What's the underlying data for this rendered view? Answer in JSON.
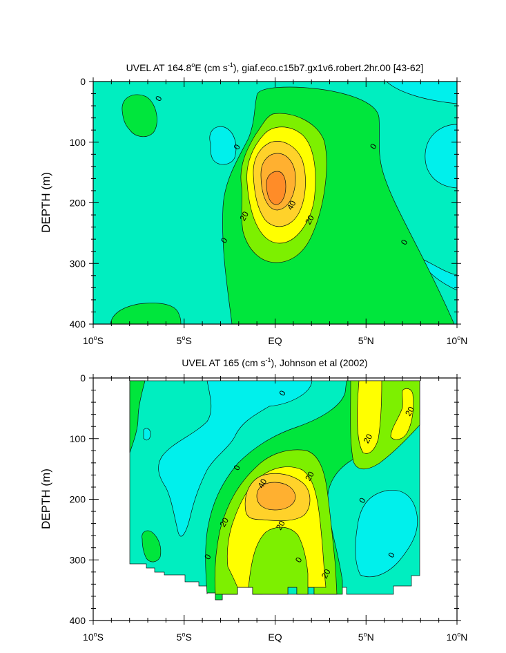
{
  "chart_data": [
    {
      "type": "contour",
      "title": "UVEL AT 164.8°E (cm s-1), giaf.eco.c15b7.gx1v6.robert.2hr.00 [43-62]",
      "title_parts": [
        "UVEL AT 164.8",
        "o",
        "E (cm s",
        "-1",
        "), giaf.eco.c15b7.gx1v6.robert.2hr.00 [43-62]"
      ],
      "ylabel": "DEPTH (m)",
      "xlim": [
        -10,
        10
      ],
      "ylim": [
        400,
        0
      ],
      "xticks": [
        {
          "value": -10,
          "label": "10",
          "deg": "o",
          "suffix": "S"
        },
        {
          "value": -5,
          "label": "5",
          "deg": "o",
          "suffix": "S"
        },
        {
          "value": 0,
          "label": "EQ",
          "deg": "",
          "suffix": ""
        },
        {
          "value": 5,
          "label": "5",
          "deg": "o",
          "suffix": "N"
        },
        {
          "value": 10,
          "label": "10",
          "deg": "o",
          "suffix": "N"
        }
      ],
      "yticks": [
        0,
        100,
        200,
        300,
        400
      ],
      "contour_levels": [
        -10,
        0,
        10,
        20,
        30,
        40,
        50
      ],
      "fill_colors": {
        "below_-10": "#00f0ec",
        "-10_to_0": "#00eec0",
        "0_to_10": "#00e63c",
        "10_to_20": "#7df000",
        "20_to_30": "#ffff00",
        "30_to_40": "#ffd22a",
        "40_to_50": "#ffb030",
        "above_50": "#ff8c28"
      },
      "core": {
        "lat": 0,
        "depth": 180,
        "max_speed": 55
      },
      "contour_labels": [
        {
          "text": "0",
          "lat": -6.4,
          "depth": 28
        },
        {
          "text": "0",
          "lat": -2.1,
          "depth": 108
        },
        {
          "text": "0",
          "lat": 5.4,
          "depth": 107
        },
        {
          "text": "0",
          "lat": -2.8,
          "depth": 262
        },
        {
          "text": "0",
          "lat": 7.1,
          "depth": 265
        },
        {
          "text": "20",
          "lat": -1.7,
          "depth": 222
        },
        {
          "text": "40",
          "lat": 0.9,
          "depth": 204
        },
        {
          "text": "20",
          "lat": 1.9,
          "depth": 228
        }
      ]
    },
    {
      "type": "contour",
      "title": "UVEL AT 165 (cm s-1), Johnson et al (2002)",
      "title_parts": [
        "UVEL AT 165 (cm s",
        "-1",
        "), Johnson et al (2002)"
      ],
      "ylabel": "DEPTH (m)",
      "xlim": [
        -10,
        10
      ],
      "ylim": [
        400,
        0
      ],
      "xticks": [
        {
          "value": -10,
          "label": "10",
          "deg": "o",
          "suffix": "S"
        },
        {
          "value": -5,
          "label": "5",
          "deg": "o",
          "suffix": "S"
        },
        {
          "value": 0,
          "label": "EQ",
          "deg": "",
          "suffix": ""
        },
        {
          "value": 5,
          "label": "5",
          "deg": "o",
          "suffix": "N"
        },
        {
          "value": 10,
          "label": "10",
          "deg": "o",
          "suffix": "N"
        }
      ],
      "yticks": [
        0,
        100,
        200,
        300,
        400
      ],
      "data_extent": {
        "lat_min": -8,
        "lat_max": 8,
        "depth_min": 0,
        "depth_max": 360
      },
      "contour_levels": [
        -10,
        0,
        10,
        20,
        30,
        40
      ],
      "core": {
        "lat": 0,
        "depth": 185,
        "max_speed": 45
      },
      "contour_labels": [
        {
          "text": "0",
          "lat": 0.4,
          "depth": 25
        },
        {
          "text": "20",
          "lat": 5.1,
          "depth": 100
        },
        {
          "text": "20",
          "lat": 7.4,
          "depth": 55
        },
        {
          "text": "0",
          "lat": -2.1,
          "depth": 148
        },
        {
          "text": "20",
          "lat": 1.9,
          "depth": 162
        },
        {
          "text": "40",
          "lat": -0.7,
          "depth": 174
        },
        {
          "text": "0",
          "lat": 4.8,
          "depth": 202
        },
        {
          "text": "20",
          "lat": -2.8,
          "depth": 238
        },
        {
          "text": "20",
          "lat": 0.3,
          "depth": 243
        },
        {
          "text": "0",
          "lat": -3.7,
          "depth": 295
        },
        {
          "text": "0",
          "lat": 1.3,
          "depth": 300
        },
        {
          "text": "0",
          "lat": 6.4,
          "depth": 292
        },
        {
          "text": "20",
          "lat": 2.8,
          "depth": 323
        }
      ]
    }
  ]
}
